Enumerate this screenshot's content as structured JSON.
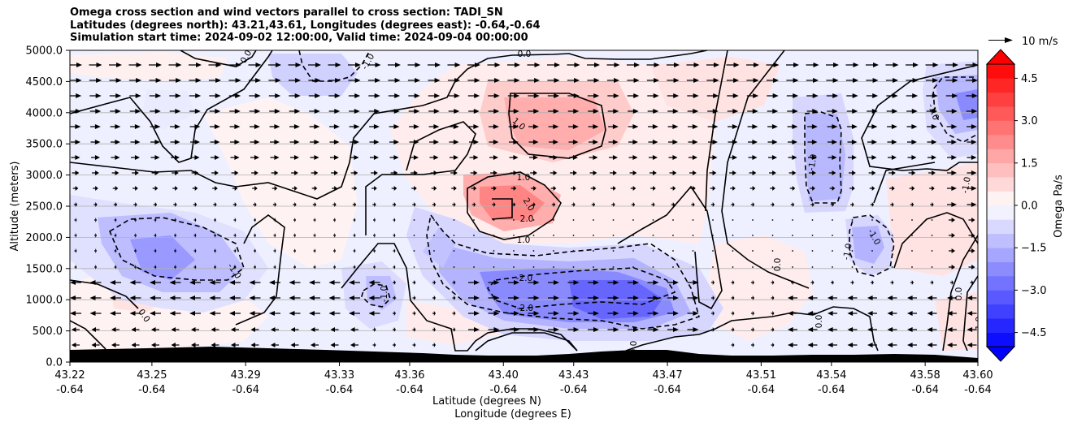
{
  "chart_data": {
    "type": "heatmap",
    "title_lines": [
      "Omega cross section and wind vectors parallel to cross section: TADI_SN",
      "Latitudes (degrees north): 43.21,43.61, Longitudes (degrees east): -0.64,-0.64",
      "Simulation start time: 2024-09-02 12:00:00, Valid time: 2024-09-04 00:00:00"
    ],
    "ylabel": "Altitude (meters)",
    "xlabel_line1": "Latitude (degrees N)",
    "xlabel_line2": "Longitude (degrees E)",
    "ylim": [
      0,
      5000
    ],
    "y_ticks": [
      "0.0",
      "500.0",
      "1000.0",
      "1500.0",
      "2000.0",
      "2500.0",
      "3000.0",
      "3500.0",
      "4000.0",
      "4500.0",
      "5000.0"
    ],
    "x_ticks_lat": [
      "43.22",
      "43.25",
      "43.29",
      "43.33",
      "43.36",
      "43.40",
      "43.43",
      "43.47",
      "43.51",
      "43.54",
      "43.58",
      "43.60"
    ],
    "x_ticks_lon": [
      "-0.64",
      "-0.64",
      "-0.64",
      "-0.64",
      "-0.64",
      "-0.64",
      "-0.64",
      "-0.64",
      "-0.64",
      "-0.64",
      "-0.64",
      "-0.64"
    ],
    "grid": "horizontal",
    "colorbar": {
      "label": "Omega Pa/s",
      "range": [
        -5,
        5
      ],
      "tick_labels": [
        "4.5",
        "3.0",
        "1.5",
        "0.0",
        "−1.5",
        "−3.0",
        "−4.5"
      ],
      "tick_values": [
        4.5,
        3.0,
        1.5,
        0.0,
        -1.5,
        -3.0,
        -4.5
      ],
      "extend": "both",
      "colormap": "bwr"
    },
    "wind_key": {
      "label": "10 m/s",
      "speed": 10
    },
    "contour_labels": [
      {
        "text": "0.0"
      },
      {
        "text": "-1.0"
      },
      {
        "text": "0.0"
      },
      {
        "text": "1.0"
      },
      {
        "text": "1.0"
      },
      {
        "text": "2.0"
      },
      {
        "text": "2.0"
      },
      {
        "text": "1.0"
      },
      {
        "text": "-2.0"
      },
      {
        "text": "-2.0"
      },
      {
        "text": "-1.0"
      },
      {
        "text": "-1.0"
      },
      {
        "text": "0.0"
      },
      {
        "text": "-1.0"
      },
      {
        "text": "-1.0"
      },
      {
        "text": "-1.0"
      },
      {
        "text": "-1.0"
      },
      {
        "text": "0.0"
      },
      {
        "text": "0.0"
      },
      {
        "text": "0.0"
      },
      {
        "text": "0.0"
      },
      {
        "text": "-1.0"
      },
      {
        "text": "-1.0"
      }
    ]
  }
}
